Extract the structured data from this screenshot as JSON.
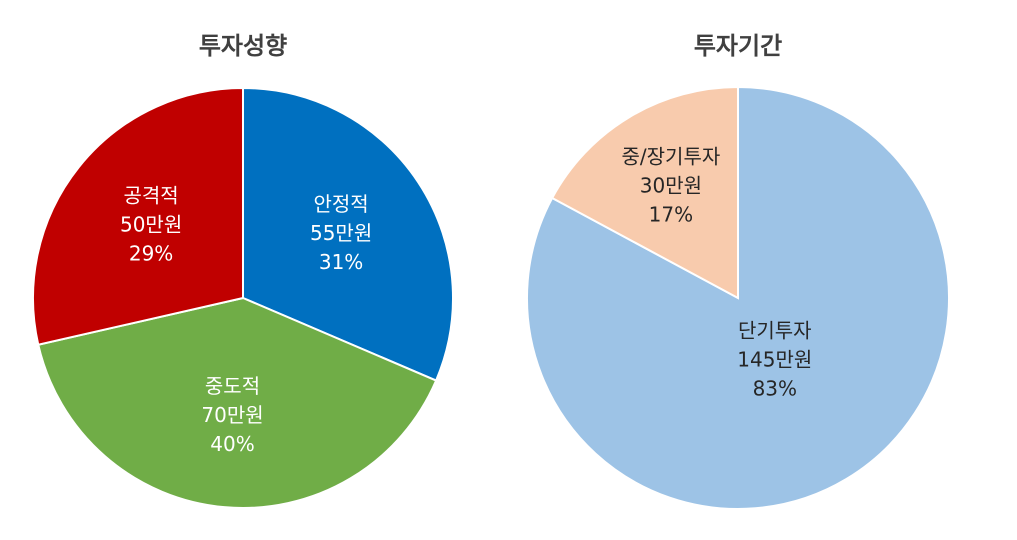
{
  "chart_data": [
    {
      "type": "pie",
      "title": "투자성향",
      "slices": [
        {
          "category": "안정적",
          "amount": "55만원",
          "percent": "31%",
          "value": 55,
          "color": "#0070C0",
          "label_color": "#ffffff"
        },
        {
          "category": "중도적",
          "amount": "70만원",
          "percent": "40%",
          "value": 70,
          "color": "#70AD47",
          "label_color": "#ffffff"
        },
        {
          "category": "공격적",
          "amount": "50만원",
          "percent": "29%",
          "value": 50,
          "color": "#C00000",
          "label_color": "#ffffff"
        }
      ]
    },
    {
      "type": "pie",
      "title": "투자기간",
      "slices": [
        {
          "category": "단기투자",
          "amount": "145만원",
          "percent": "83%",
          "value": 145,
          "color": "#9DC3E6",
          "label_color": "#262626"
        },
        {
          "category": "중/장기투자",
          "amount": "30만원",
          "percent": "17%",
          "value": 30,
          "color": "#F8CBAD",
          "label_color": "#262626"
        }
      ]
    }
  ]
}
